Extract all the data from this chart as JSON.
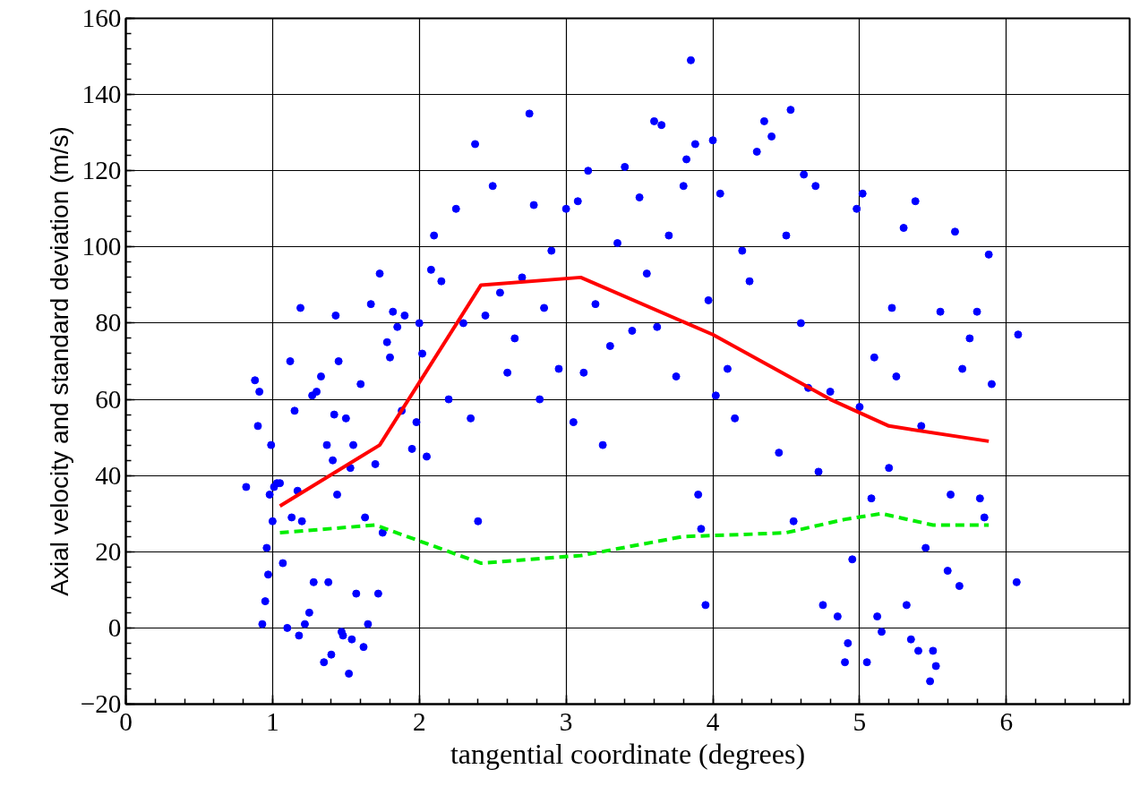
{
  "chart_data": {
    "type": "scatter",
    "xlabel": "tangential coordinate (degrees)",
    "ylabel": "Axial velocity and standard deviation (m/s)",
    "xlim": [
      0,
      6.84
    ],
    "ylim": [
      -20,
      160
    ],
    "xticks": [
      0,
      1,
      2,
      3,
      4,
      5,
      6
    ],
    "yticks": [
      -20,
      0,
      20,
      40,
      60,
      80,
      100,
      120,
      140,
      160
    ],
    "grid": true,
    "series": [
      {
        "marker": "circle",
        "color": "#0000ff",
        "x": [
          0.82,
          0.88,
          0.9,
          0.91,
          0.93,
          0.95,
          0.96,
          0.97,
          0.98,
          0.99,
          1.0,
          1.01,
          1.03,
          1.05,
          1.07,
          1.1,
          1.12,
          1.13,
          1.15,
          1.17,
          1.18,
          1.19,
          1.2,
          1.22,
          1.25,
          1.27,
          1.28,
          1.3,
          1.33,
          1.35,
          1.37,
          1.38,
          1.4,
          1.41,
          1.42,
          1.43,
          1.44,
          1.45,
          1.47,
          1.48,
          1.5,
          1.52,
          1.53,
          1.54,
          1.55,
          1.57,
          1.6,
          1.62,
          1.63,
          1.65,
          1.67,
          1.7,
          1.72,
          1.73,
          1.75,
          1.78,
          1.8,
          1.82,
          1.85,
          1.88,
          1.9,
          1.95,
          1.98,
          2.0,
          2.02,
          2.05,
          2.08,
          2.1,
          2.15,
          2.2,
          2.25,
          2.3,
          2.35,
          2.38,
          2.4,
          2.45,
          2.5,
          2.55,
          2.6,
          2.65,
          2.7,
          2.75,
          2.78,
          2.82,
          2.85,
          2.9,
          2.95,
          3.0,
          3.05,
          3.08,
          3.12,
          3.15,
          3.2,
          3.25,
          3.3,
          3.35,
          3.4,
          3.45,
          3.5,
          3.55,
          3.6,
          3.62,
          3.65,
          3.7,
          3.75,
          3.8,
          3.82,
          3.85,
          3.88,
          3.9,
          3.92,
          3.95,
          3.97,
          4.0,
          4.02,
          4.05,
          4.1,
          4.15,
          4.2,
          4.25,
          4.3,
          4.35,
          4.4,
          4.45,
          4.5,
          4.53,
          4.55,
          4.6,
          4.62,
          4.65,
          4.7,
          4.72,
          4.75,
          4.8,
          4.85,
          4.9,
          4.92,
          4.95,
          4.98,
          5.0,
          5.02,
          5.05,
          5.08,
          5.1,
          5.12,
          5.15,
          5.2,
          5.22,
          5.25,
          5.3,
          5.32,
          5.35,
          5.38,
          5.4,
          5.42,
          5.45,
          5.48,
          5.5,
          5.52,
          5.55,
          5.6,
          5.62,
          5.65,
          5.68,
          5.7,
          5.75,
          5.8,
          5.82,
          5.85,
          5.88,
          5.9,
          6.07,
          6.08
        ],
        "values": [
          37,
          65,
          53,
          62,
          1,
          7,
          21,
          14,
          35,
          48,
          28,
          37,
          38,
          38,
          17,
          0,
          70,
          29,
          57,
          36,
          -2,
          84,
          28,
          1,
          4,
          61,
          12,
          62,
          66,
          -9,
          48,
          12,
          -7,
          44,
          56,
          82,
          35,
          70,
          -1,
          -2,
          55,
          -12,
          42,
          -3,
          48,
          9,
          64,
          -5,
          29,
          1,
          85,
          43,
          9,
          93,
          25,
          75,
          71,
          83,
          79,
          57,
          82,
          47,
          54,
          80,
          72,
          45,
          94,
          103,
          91,
          60,
          110,
          80,
          55,
          127,
          28,
          82,
          116,
          88,
          67,
          76,
          92,
          135,
          111,
          60,
          84,
          99,
          68,
          110,
          54,
          112,
          67,
          120,
          85,
          48,
          74,
          101,
          121,
          78,
          113,
          93,
          133,
          79,
          132,
          103,
          66,
          116,
          123,
          149,
          127,
          35,
          26,
          6,
          86,
          128,
          61,
          114,
          68,
          55,
          99,
          91,
          125,
          133,
          129,
          46,
          103,
          136,
          28,
          80,
          119,
          63,
          116,
          41,
          6,
          62,
          3,
          -9,
          -4,
          18,
          110,
          58,
          114,
          -9,
          34,
          71,
          3,
          -1,
          42,
          84,
          66,
          105,
          6,
          -3,
          112,
          -6,
          53,
          21,
          -14,
          -6,
          -10,
          83,
          15,
          35,
          104,
          11,
          68,
          76,
          83,
          34,
          29,
          98,
          64,
          12,
          77
        ]
      },
      {
        "type": "line",
        "marker": "none",
        "color": "#ff0000",
        "line_style": "solid",
        "x": [
          1.05,
          1.73,
          2.42,
          3.1,
          4.0,
          4.8,
          5.2,
          5.88
        ],
        "values": [
          32,
          48,
          90,
          92,
          77,
          60,
          53,
          49
        ]
      },
      {
        "type": "line",
        "marker": "none",
        "color": "#00ee00",
        "line_style": "dashed",
        "x": [
          1.05,
          1.7,
          2.42,
          3.1,
          3.8,
          4.2,
          4.5,
          4.9,
          5.15,
          5.5,
          5.88
        ],
        "values": [
          25,
          27,
          17,
          19,
          24,
          24.5,
          25,
          28.5,
          30,
          27,
          27
        ]
      }
    ]
  }
}
